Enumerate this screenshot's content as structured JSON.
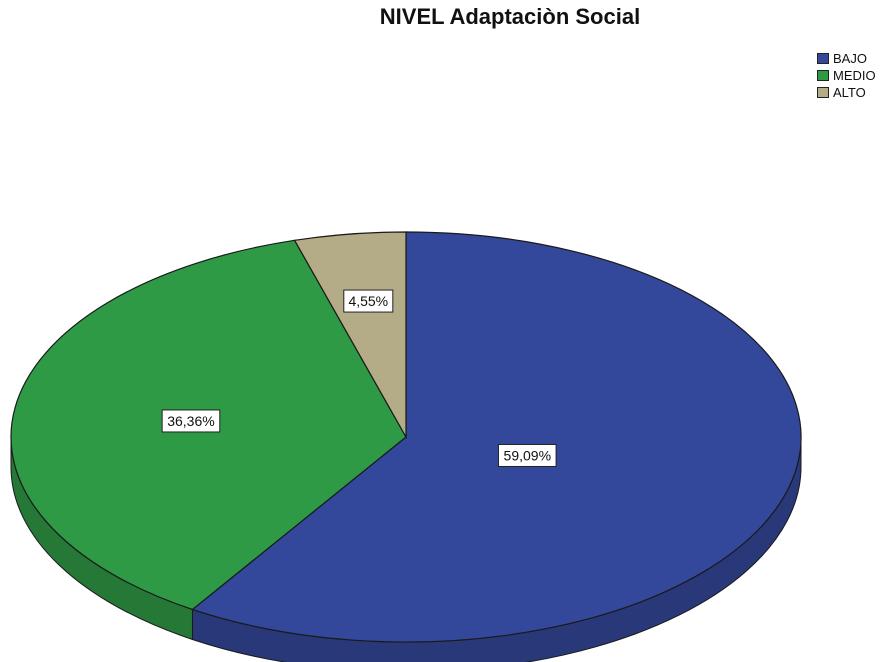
{
  "chart_data": {
    "type": "pie",
    "title": "NIVEL Adaptaciòn Social",
    "legend_position": "top-right",
    "slices": [
      {
        "label": "BAJO",
        "value": 59.09,
        "display": "59,09%",
        "color": "#33489a"
      },
      {
        "label": "MEDIO",
        "value": 36.36,
        "display": "36,36%",
        "color": "#2f9a45"
      },
      {
        "label": "ALTO",
        "value": 4.55,
        "display": "4,55%",
        "color": "#b4ac86"
      }
    ]
  }
}
